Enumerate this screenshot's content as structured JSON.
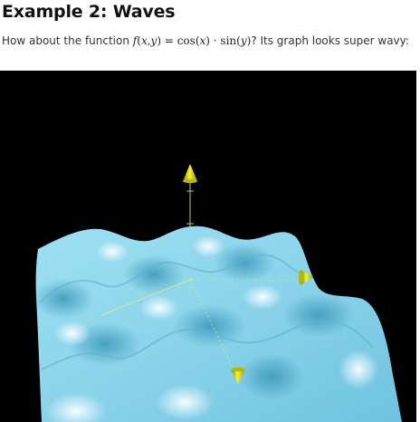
{
  "heading": "Example 2: Waves",
  "intro": {
    "before": "How about the function",
    "math_f": "f",
    "math_open": "(",
    "math_x": "x",
    "math_comma": ",",
    "math_y": "y",
    "math_close": ")",
    "math_eq": " = ",
    "math_cos": "cos",
    "math_cos_open": "(",
    "math_cos_x": "x",
    "math_cos_close": ")",
    "math_dot": " · ",
    "math_sin": "sin",
    "math_sin_open": "(",
    "math_sin_y": "y",
    "math_sin_close": ")",
    "after": "? Its graph looks super wavy:"
  },
  "graph": {
    "function": "cos(x) · sin(y)",
    "background_color": "#000000",
    "surface_color": "#8fd8ee",
    "axis_color": "#e8f060",
    "axis_arrow_color": "#e6ea1a"
  }
}
